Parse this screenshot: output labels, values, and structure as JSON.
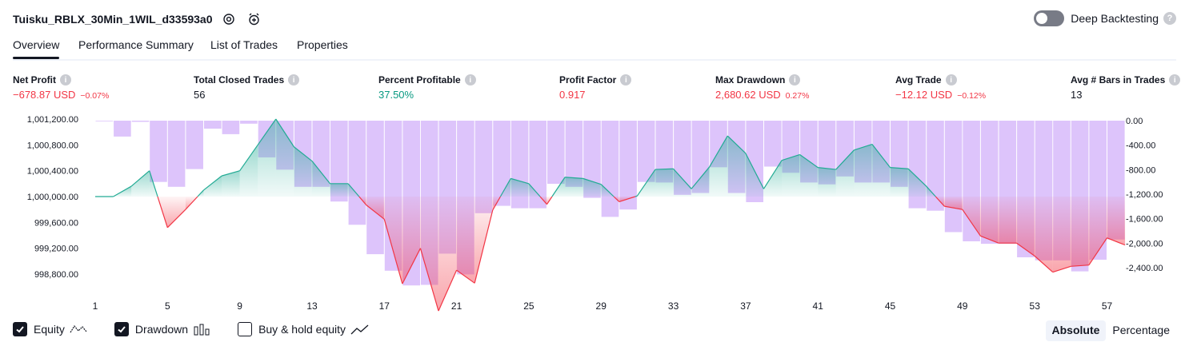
{
  "header": {
    "title": "Tuisku_RBLX_30Min_1WIL_d33593a0",
    "deep_backtesting_label": "Deep Backtesting",
    "deep_backtesting_enabled": false
  },
  "tabs": [
    {
      "label": "Overview",
      "active": true
    },
    {
      "label": "Performance Summary",
      "active": false
    },
    {
      "label": "List of Trades",
      "active": false
    },
    {
      "label": "Properties",
      "active": false
    }
  ],
  "metrics": [
    {
      "label": "Net Profit",
      "value": "−678.87 USD",
      "pct": "−0.07%",
      "color": "red"
    },
    {
      "label": "Total Closed Trades",
      "value": "56",
      "pct": "",
      "color": "blk"
    },
    {
      "label": "Percent Profitable",
      "value": "37.50%",
      "pct": "",
      "color": "green"
    },
    {
      "label": "Profit Factor",
      "value": "0.917",
      "pct": "",
      "color": "red"
    },
    {
      "label": "Max Drawdown",
      "value": "2,680.62 USD",
      "pct": "0.27%",
      "color": "red"
    },
    {
      "label": "Avg Trade",
      "value": "−12.12 USD",
      "pct": "−0.12%",
      "color": "red"
    },
    {
      "label": "Avg # Bars in Trades",
      "value": "13",
      "pct": "",
      "color": "blk"
    }
  ],
  "legend": {
    "equity": {
      "label": "Equity",
      "checked": true
    },
    "drawdown": {
      "label": "Drawdown",
      "checked": true
    },
    "buy_hold": {
      "label": "Buy & hold equity",
      "checked": false
    }
  },
  "modes": {
    "absolute": "Absolute",
    "percentage": "Percentage",
    "active": "absolute"
  },
  "colors": {
    "profit_line": "#22ab94",
    "loss_line": "#f23645",
    "drawdown_bar": "#c79cf8",
    "accent": "#131722"
  },
  "chart_data": {
    "type": "line",
    "x_ticks": [
      "1",
      "5",
      "9",
      "13",
      "17",
      "21",
      "25",
      "29",
      "33",
      "37",
      "41",
      "45",
      "49",
      "53",
      "57"
    ],
    "y_left_ticks": [
      "1,001,200.00",
      "1,000,800.00",
      "1,000,400.00",
      "1,000,000.00",
      "999,600.00",
      "999,200.00",
      "998,800.00"
    ],
    "y_left_values": [
      1001200,
      1000800,
      1000400,
      1000000,
      999600,
      999200,
      998800
    ],
    "y_right_ticks": [
      "0.00",
      "-400.00",
      "-800.00",
      "-1,200.00",
      "-1,600.00",
      "-2,000.00",
      "-2,400.00"
    ],
    "y_right_values": [
      0,
      -400,
      -800,
      -1200,
      -1600,
      -2000,
      -2400
    ],
    "equity_baseline": 1000000,
    "series": [
      {
        "name": "Equity",
        "type": "line",
        "x_start": 1,
        "values": [
          1000000,
          1000000,
          1000160,
          1000400,
          999520,
          999800,
          1000100,
          1000320,
          1000400,
          1000800,
          1001200,
          1000770,
          1000550,
          1000200,
          1000200,
          999870,
          999650,
          998650,
          999200,
          998230,
          998860,
          998660,
          999790,
          1000280,
          1000200,
          999880,
          1000300,
          1000280,
          1000190,
          999920,
          1000010,
          1000420,
          1000430,
          1000120,
          1000460,
          1000940,
          1000670,
          1000120,
          1000560,
          1000650,
          1000450,
          1000420,
          1000720,
          1000810,
          1000450,
          1000430,
          1000160,
          999850,
          999800,
          999390,
          999280,
          999280,
          999080,
          998830,
          998920,
          998940,
          999360,
          999250
        ]
      },
      {
        "name": "Drawdown",
        "type": "bar",
        "x_start": 1,
        "values": [
          0,
          -260,
          -20,
          -1000,
          -1080,
          -790,
          -130,
          -220,
          -50,
          -600,
          -800,
          -1080,
          -1080,
          -1320,
          -1700,
          -2180,
          -2450,
          -2690,
          -2680,
          -2170,
          -2510,
          -1510,
          -1390,
          -1430,
          -1430,
          -1030,
          -1080,
          -1260,
          -1570,
          -1450,
          -1000,
          -1010,
          -1210,
          -1180,
          -760,
          -1180,
          -1330,
          -750,
          -850,
          -1010,
          -1040,
          -910,
          -1010,
          -1010,
          -1080,
          -1430,
          -1470,
          -1820,
          -1970,
          -2010,
          -2010,
          -2230,
          -2280,
          -2280,
          -2460,
          -2270,
          -1940
        ]
      }
    ],
    "xlabel": "",
    "ylabel": "",
    "grid": false,
    "legend": "bottom-left"
  }
}
